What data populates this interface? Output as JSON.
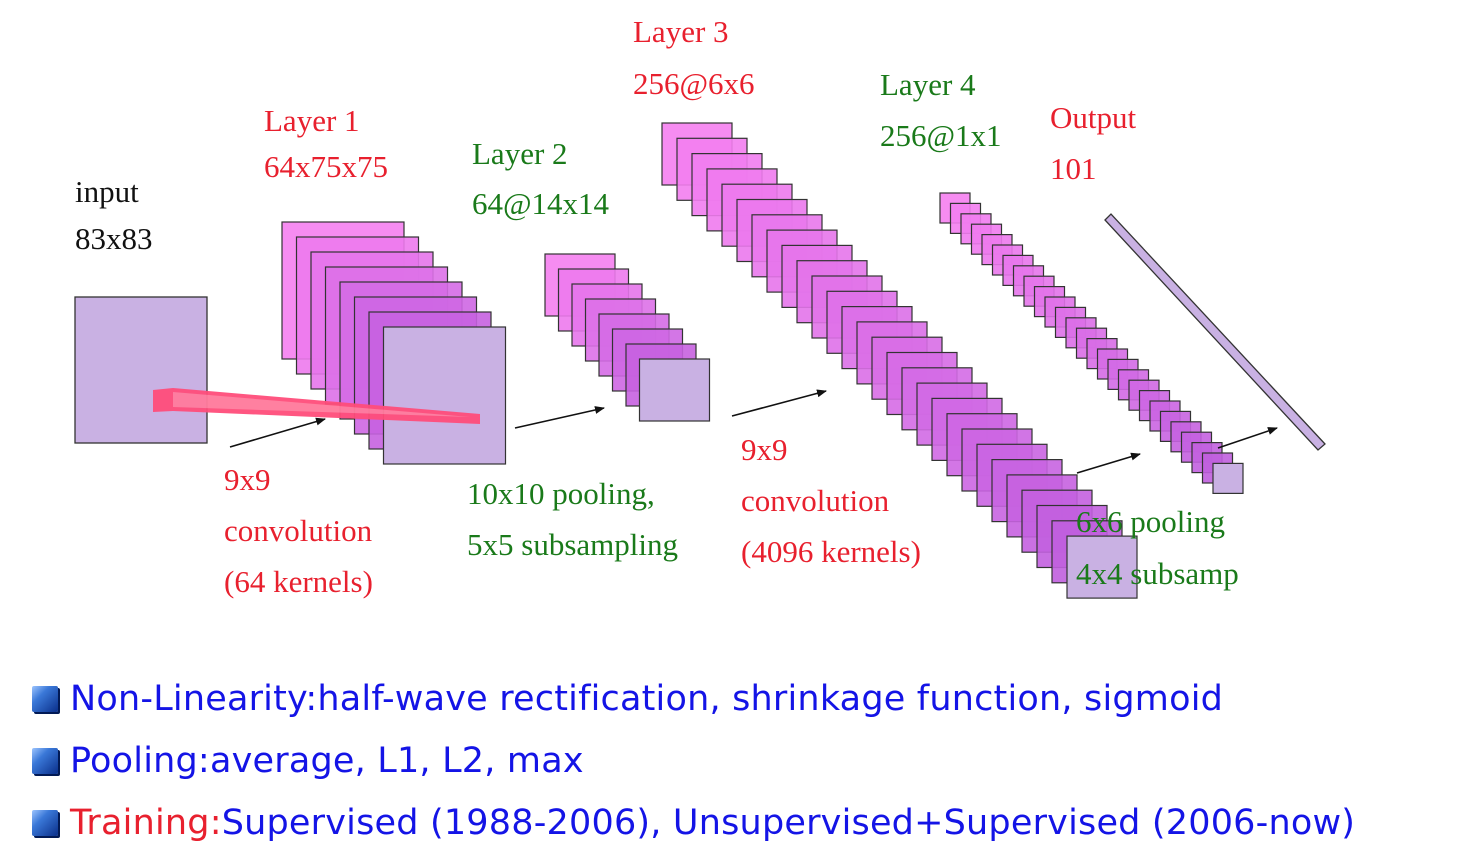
{
  "input": {
    "title": "input",
    "size": "83x83"
  },
  "layer1": {
    "title": "Layer 1",
    "size": "64x75x75"
  },
  "layer2": {
    "title": "Layer 2",
    "size": "64@14x14"
  },
  "layer3": {
    "title": "Layer 3",
    "size": "256@6x6"
  },
  "layer4": {
    "title": "Layer 4",
    "size": "256@1x1"
  },
  "output": {
    "title": "Output",
    "size": "101"
  },
  "op1": {
    "line1": "9x9",
    "line2": "convolution",
    "line3": "(64 kernels)"
  },
  "op2": {
    "line1": "10x10 pooling,",
    "line2": "5x5 subsampling"
  },
  "op3": {
    "line1": "9x9",
    "line2": "convolution",
    "line3": "(4096 kernels)"
  },
  "op4": {
    "line1": "6x6 pooling",
    "line2": "4x4 subsamp"
  },
  "colors": {
    "red": "#e8202e",
    "green": "#1a7a1a",
    "blue": "#1414e6",
    "map_front": "#c9b1e3",
    "map_back": "#f57ff0"
  },
  "bullets": [
    {
      "label": "Non-Linearity:",
      "text": " half-wave rectification, shrinkage function, sigmoid",
      "highlight": false
    },
    {
      "label": "Pooling:",
      "text": " average, L1, L2, max",
      "highlight": false
    },
    {
      "label": "Training:",
      "text": " Supervised (1988-2006), Unsupervised+Supervised (2006-now)",
      "highlight": true
    }
  ]
}
